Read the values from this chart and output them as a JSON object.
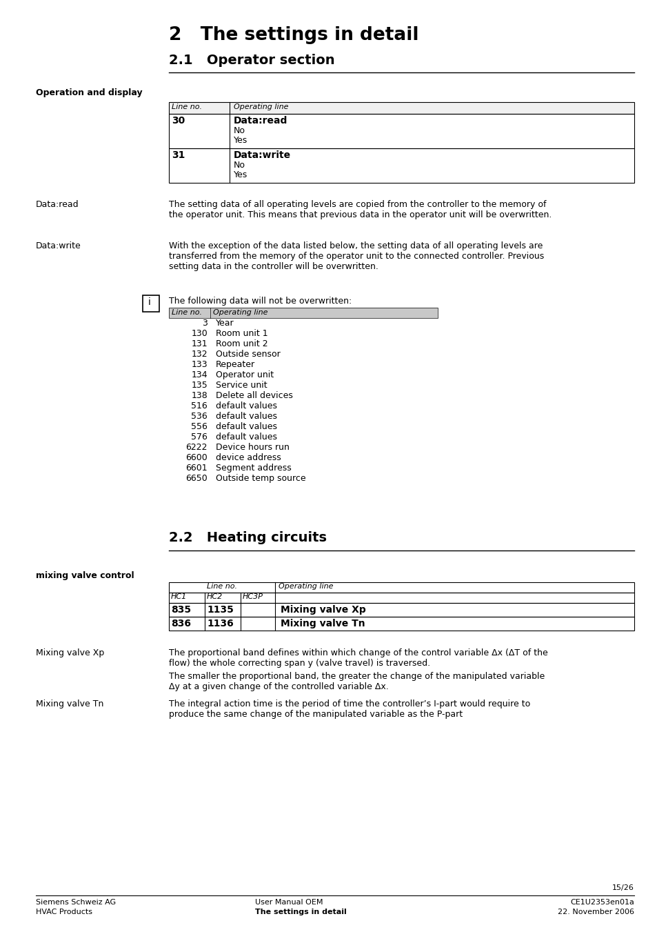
{
  "page_title_num": "2",
  "page_title_text": "The settings in detail",
  "section_21": "2.1   Operator section",
  "section_22": "2.2   Heating circuits",
  "op_display_label": "Operation and display",
  "dataread_label": "Data:read",
  "dataread_text": "The setting data of all operating levels are copied from the controller to the memory of\nthe operator unit. This means that previous data in the operator unit will be overwritten.",
  "datawrite_label": "Data:write",
  "datawrite_text": "With the exception of the data listed below, the setting data of all operating levels are\ntransferred from the memory of the operator unit to the connected controller. Previous\nsetting data in the controller will be overwritten.",
  "info_note": "The following data will not be overwritten:",
  "info_table_rows": [
    [
      "3",
      "Year"
    ],
    [
      "130",
      "Room unit 1"
    ],
    [
      "131",
      "Room unit 2"
    ],
    [
      "132",
      "Outside sensor"
    ],
    [
      "133",
      "Repeater"
    ],
    [
      "134",
      "Operator unit"
    ],
    [
      "135",
      "Service unit"
    ],
    [
      "138",
      "Delete all devices"
    ],
    [
      "516",
      "default values"
    ],
    [
      "536",
      "default values"
    ],
    [
      "556",
      "default values"
    ],
    [
      "576",
      "default values"
    ],
    [
      "6222",
      "Device hours run"
    ],
    [
      "6600",
      "device address"
    ],
    [
      "6601",
      "Segment address"
    ],
    [
      "6650",
      "Outside temp source"
    ]
  ],
  "mixing_label": "mixing valve control",
  "table2_hc": [
    "HC1",
    "HC2",
    "HC3P"
  ],
  "table2_rows": [
    [
      "835",
      "1135",
      "",
      "Mixing valve Xp"
    ],
    [
      "836",
      "1136",
      "",
      "Mixing valve Tn"
    ]
  ],
  "mixing_xp_label": "Mixing valve Xp",
  "mixing_xp_text1": "The proportional band defines within which change of the control variable Δx (ΔT of the\nflow) the whole correcting span y (valve travel) is traversed.",
  "mixing_xp_text2": "The smaller the proportional band, the greater the change of the manipulated variable\nΔy at a given change of the controlled variable Δx.",
  "mixing_tn_label": "Mixing valve Tn",
  "mixing_tn_text": "The integral action time is the period of time the controller’s I-part would require to\nproduce the same change of the manipulated variable as the P-part",
  "page_num": "15/26",
  "footer_left1": "Siemens Schweiz AG",
  "footer_left2": "HVAC Products",
  "footer_mid1": "User Manual OEM",
  "footer_mid2": "The settings in detail",
  "footer_right1": "CE1U2353en01a",
  "footer_right2": "22. November 2006"
}
